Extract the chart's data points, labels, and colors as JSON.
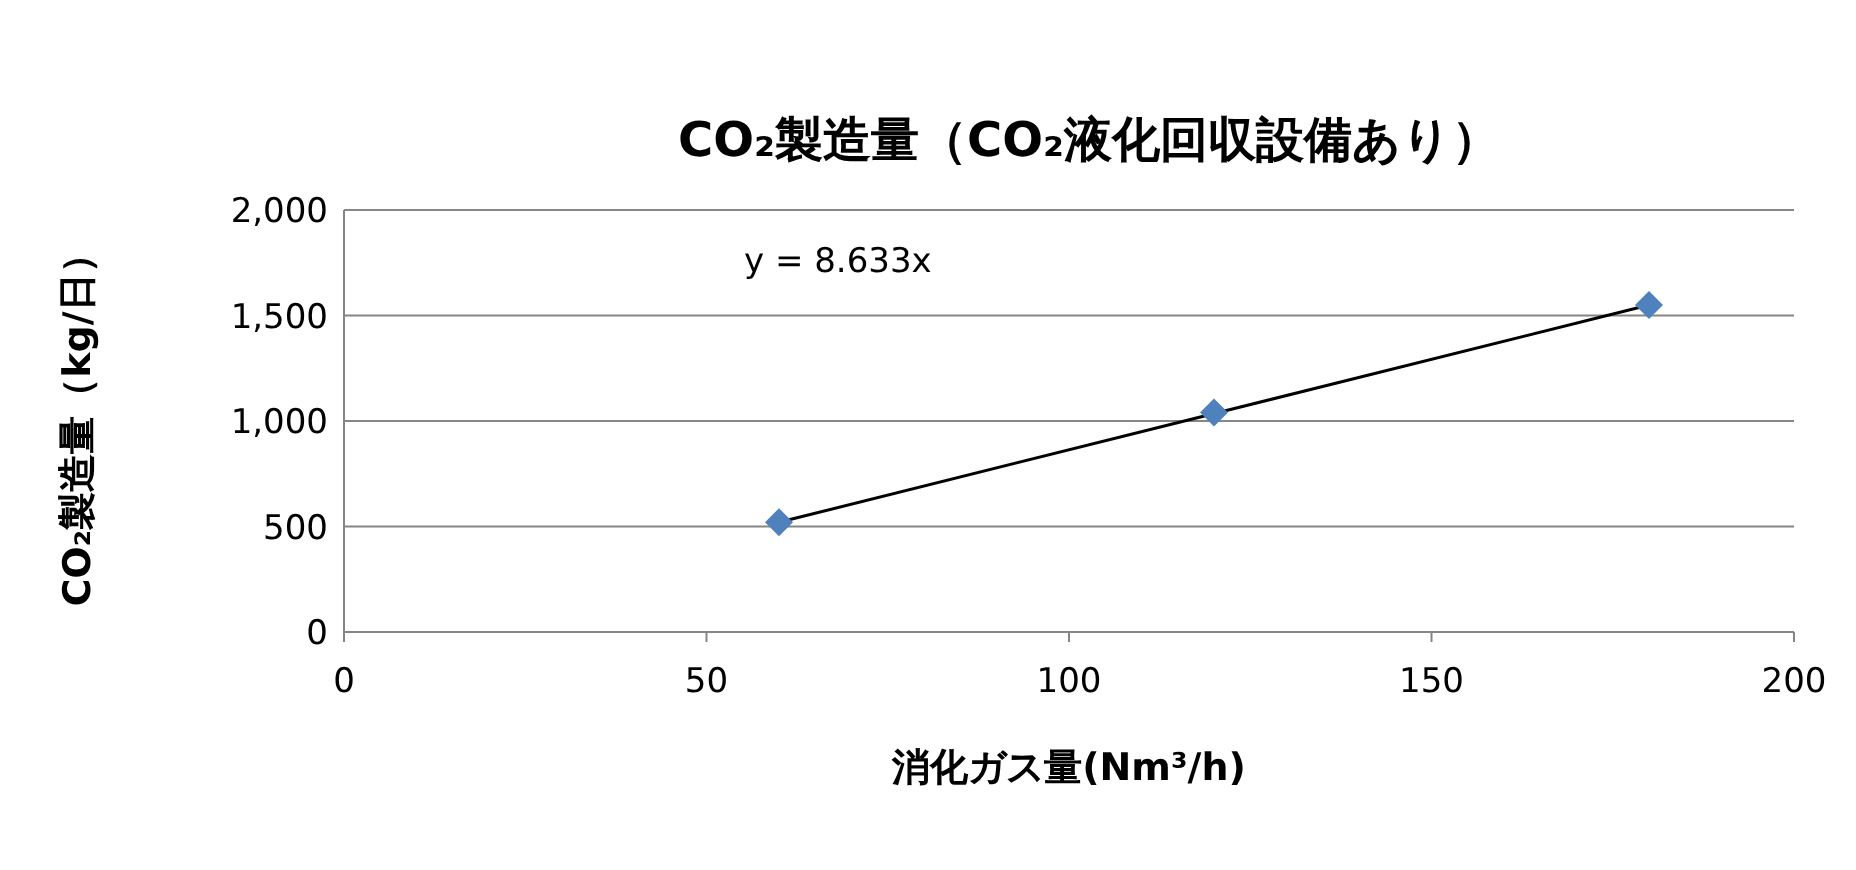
{
  "chart_data": {
    "type": "scatter",
    "title": "CO₂製造量（CO₂液化回収設備あり）",
    "xlabel": "消化ガス量(Nm³/h)",
    "ylabel": "CO₂製造量（kg/日）",
    "series": [
      {
        "color": "#4f81bd",
        "marker": "diamond",
        "x": [
          60,
          120,
          180
        ],
        "values": [
          520,
          1040,
          1550
        ]
      },
      {
        "type": "line",
        "color": "#000000",
        "marker": "none",
        "x": [
          60,
          180
        ],
        "values": [
          520,
          1550
        ]
      }
    ],
    "annotations": [
      "y = 8.633x"
    ],
    "xlim": [
      0,
      200
    ],
    "xticks": [
      0,
      50,
      100,
      150,
      200
    ],
    "ylim": [
      0,
      2000
    ],
    "yticks": [
      0,
      {
        "value": 500,
        "label": "500"
      },
      {
        "value": 1000,
        "label": "1,000"
      },
      {
        "value": 1500,
        "label": "1,500"
      },
      {
        "value": 2000,
        "label": "2,000"
      }
    ],
    "grid": "y"
  }
}
